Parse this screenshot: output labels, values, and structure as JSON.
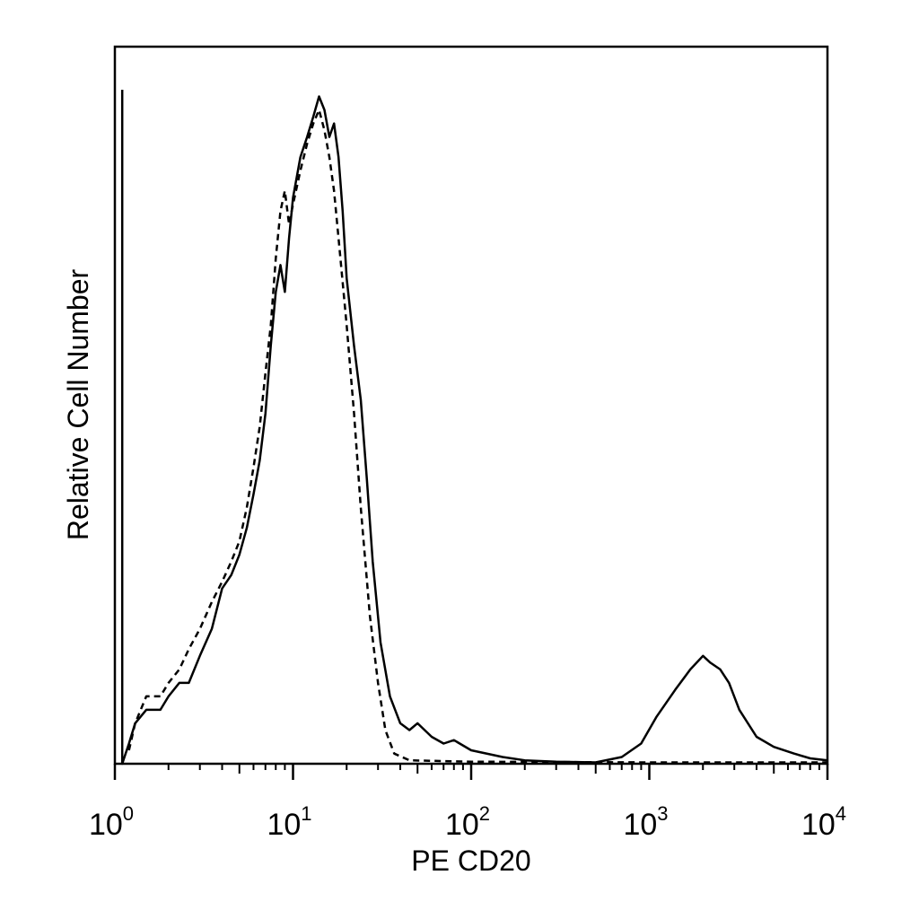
{
  "chart_data": {
    "type": "line",
    "title": "",
    "xlabel": "PE CD20",
    "ylabel": "Relative Cell Number",
    "x_scale": "log",
    "xlim": [
      1,
      10000
    ],
    "ylim": [
      0,
      100
    ],
    "grid": false,
    "x_ticks": [
      {
        "value": 1,
        "base": "10",
        "exp": "0"
      },
      {
        "value": 10,
        "base": "10",
        "exp": "1"
      },
      {
        "value": 100,
        "base": "10",
        "exp": "2"
      },
      {
        "value": 1000,
        "base": "10",
        "exp": "3"
      },
      {
        "value": 10000,
        "base": "10",
        "exp": "4"
      }
    ],
    "series": [
      {
        "style": "solid",
        "color": "#000000",
        "points": [
          [
            1.1,
            100
          ],
          [
            1.1,
            0
          ],
          [
            1.2,
            3
          ],
          [
            1.3,
            6
          ],
          [
            1.5,
            8
          ],
          [
            1.8,
            8
          ],
          [
            2.0,
            10
          ],
          [
            2.3,
            12
          ],
          [
            2.6,
            12
          ],
          [
            3.0,
            16
          ],
          [
            3.5,
            20
          ],
          [
            4.0,
            26
          ],
          [
            4.5,
            28
          ],
          [
            5.0,
            31
          ],
          [
            5.5,
            35
          ],
          [
            6.0,
            40
          ],
          [
            6.5,
            45
          ],
          [
            7.0,
            52
          ],
          [
            7.5,
            62
          ],
          [
            8.0,
            70
          ],
          [
            8.5,
            74
          ],
          [
            9.0,
            70
          ],
          [
            9.5,
            78
          ],
          [
            10,
            84
          ],
          [
            11,
            90
          ],
          [
            12,
            93
          ],
          [
            13,
            96
          ],
          [
            14,
            99
          ],
          [
            15,
            97
          ],
          [
            16,
            93
          ],
          [
            17,
            95
          ],
          [
            18,
            90
          ],
          [
            19,
            82
          ],
          [
            20,
            72
          ],
          [
            22,
            62
          ],
          [
            24,
            54
          ],
          [
            26,
            42
          ],
          [
            28,
            30
          ],
          [
            31,
            18
          ],
          [
            35,
            10
          ],
          [
            40,
            6
          ],
          [
            45,
            5
          ],
          [
            50,
            6
          ],
          [
            60,
            4
          ],
          [
            70,
            3
          ],
          [
            80,
            3.5
          ],
          [
            100,
            2
          ],
          [
            150,
            1
          ],
          [
            200,
            0.5
          ],
          [
            300,
            0.3
          ],
          [
            500,
            0.2
          ],
          [
            700,
            1
          ],
          [
            900,
            3
          ],
          [
            1100,
            7
          ],
          [
            1400,
            11
          ],
          [
            1700,
            14
          ],
          [
            2000,
            16
          ],
          [
            2200,
            15
          ],
          [
            2500,
            14
          ],
          [
            2800,
            12
          ],
          [
            3200,
            8
          ],
          [
            4000,
            4
          ],
          [
            5000,
            2.5
          ],
          [
            6500,
            1.5
          ],
          [
            8000,
            0.8
          ],
          [
            10000,
            0.5
          ]
        ]
      },
      {
        "style": "dashed",
        "color": "#000000",
        "points": [
          [
            1.2,
            2
          ],
          [
            1.3,
            6
          ],
          [
            1.5,
            10
          ],
          [
            1.8,
            10
          ],
          [
            2.0,
            12
          ],
          [
            2.3,
            14
          ],
          [
            2.6,
            17
          ],
          [
            3.0,
            20
          ],
          [
            3.5,
            24
          ],
          [
            4.0,
            27
          ],
          [
            4.5,
            30
          ],
          [
            5.0,
            33
          ],
          [
            5.5,
            38
          ],
          [
            6.0,
            44
          ],
          [
            6.5,
            50
          ],
          [
            7.0,
            58
          ],
          [
            7.5,
            65
          ],
          [
            8.0,
            75
          ],
          [
            8.5,
            82
          ],
          [
            9.0,
            85
          ],
          [
            9.5,
            80
          ],
          [
            10,
            83
          ],
          [
            11,
            88
          ],
          [
            12,
            92
          ],
          [
            13,
            95
          ],
          [
            14,
            97
          ],
          [
            15,
            94
          ],
          [
            16,
            90
          ],
          [
            17,
            85
          ],
          [
            18,
            78
          ],
          [
            20,
            65
          ],
          [
            22,
            52
          ],
          [
            24,
            38
          ],
          [
            27,
            22
          ],
          [
            30,
            12
          ],
          [
            33,
            5
          ],
          [
            37,
            1.5
          ],
          [
            45,
            0.5
          ],
          [
            100,
            0.3
          ],
          [
            1000,
            0.2
          ],
          [
            10000,
            0.2
          ]
        ]
      }
    ]
  }
}
